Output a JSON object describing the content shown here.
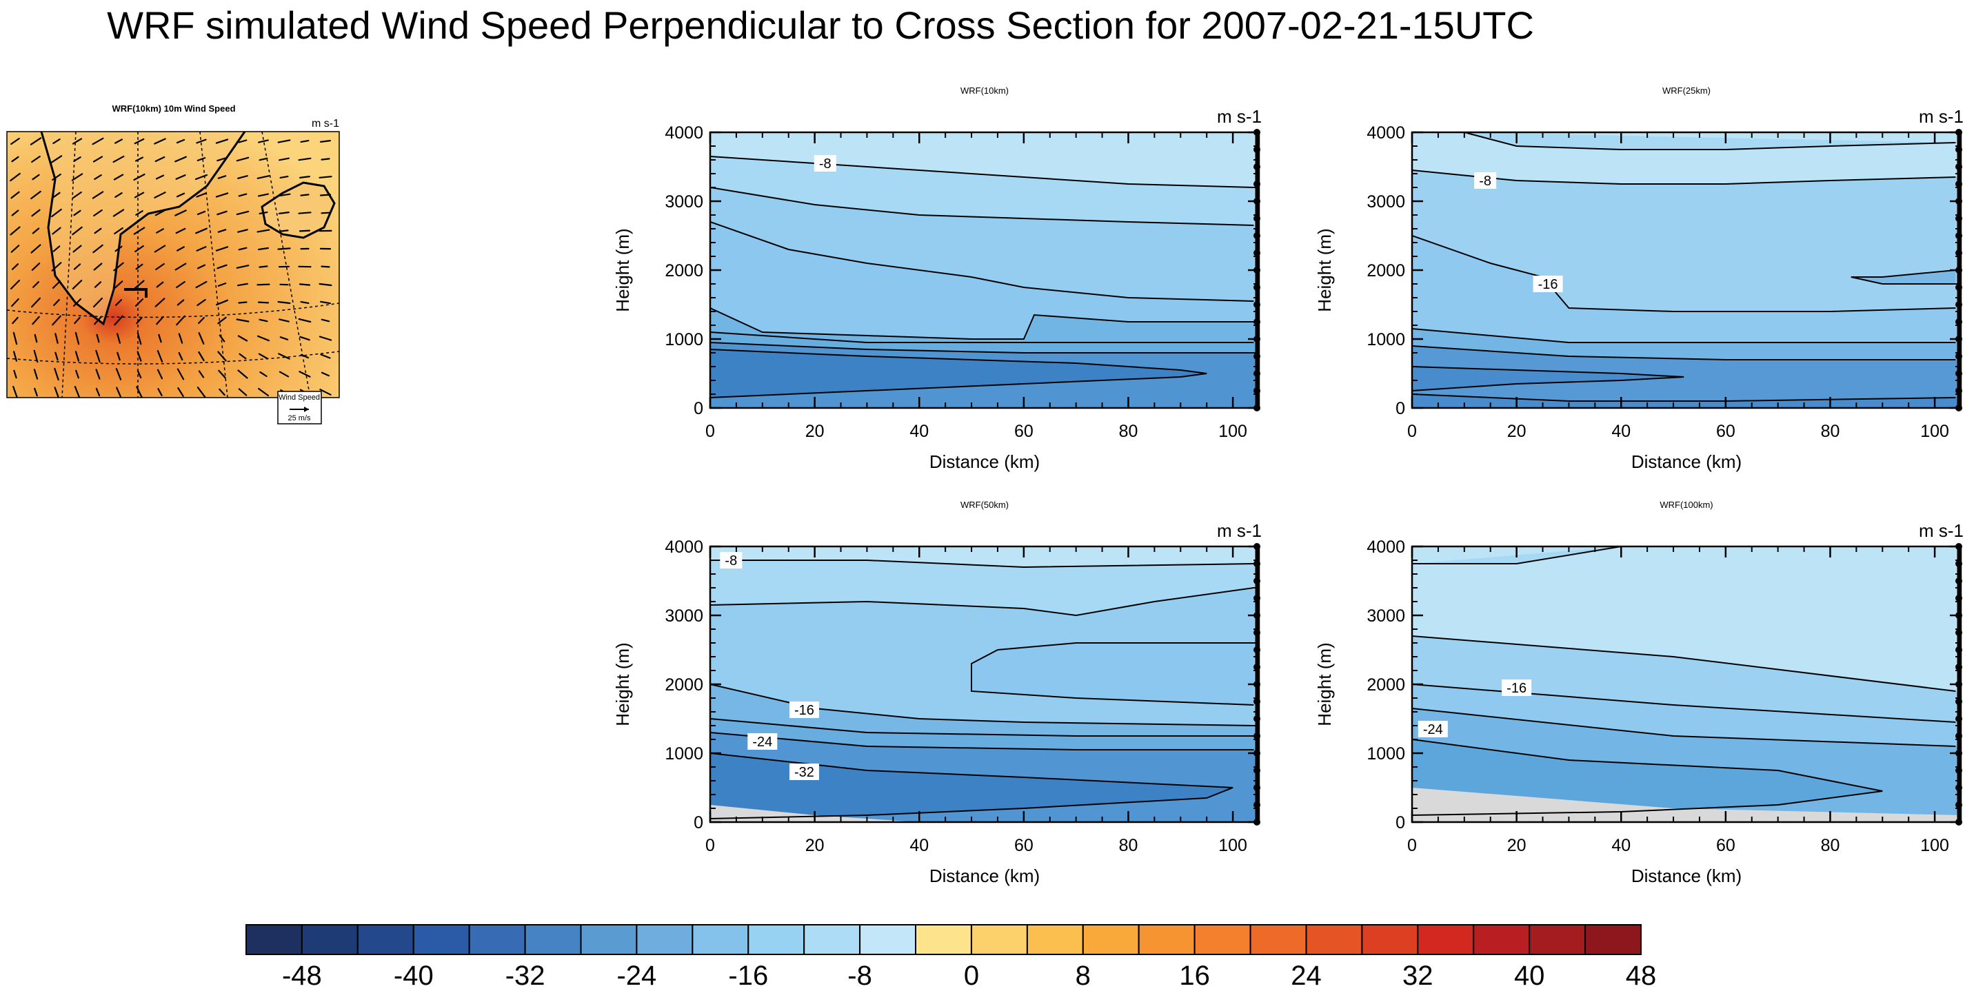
{
  "title": "WRF simulated Wind Speed Perpendicular to Cross Section for 2007-02-21-15UTC",
  "map": {
    "title": "WRF(10km) 10m Wind Speed",
    "units": "m s-1",
    "legend_title": "Wind Speed",
    "legend_value": "25 m/s"
  },
  "colors": {
    "fill_lt": "#bde3f7",
    "fill_m8": "#98d2f3",
    "fill_m16": "#83c3ec",
    "fill_m24": "#5ca6dc",
    "fill_m32": "#3e82c6",
    "terrain": "#d9d9d9"
  },
  "chart_data": [
    {
      "type": "contour",
      "title": "WRF(10km)",
      "units": "m s-1",
      "xlabel": "Distance (km)",
      "ylabel": "Height (m)",
      "xlim": [
        0,
        105
      ],
      "ylim": [
        0,
        4000
      ],
      "xticks": [
        "0",
        "20",
        "40",
        "60",
        "80",
        "100"
      ],
      "yticks": [
        "0",
        "1000",
        "2000",
        "3000",
        "4000"
      ],
      "contour_labels": [
        {
          "text": "-8",
          "x": 22,
          "y": 3550
        }
      ],
      "contours": [
        [
          [
            0,
            3650
          ],
          [
            20,
            3550
          ],
          [
            40,
            3450
          ],
          [
            60,
            3350
          ],
          [
            80,
            3250
          ],
          [
            104,
            3200
          ]
        ],
        [
          [
            0,
            3200
          ],
          [
            20,
            2950
          ],
          [
            40,
            2800
          ],
          [
            60,
            2750
          ],
          [
            80,
            2700
          ],
          [
            104,
            2650
          ]
        ],
        [
          [
            0,
            2700
          ],
          [
            15,
            2300
          ],
          [
            30,
            2100
          ],
          [
            50,
            1900
          ],
          [
            60,
            1750
          ],
          [
            80,
            1600
          ],
          [
            104,
            1550
          ]
        ],
        [
          [
            0,
            1450
          ],
          [
            10,
            1100
          ],
          [
            30,
            1050
          ],
          [
            50,
            1000
          ],
          [
            60,
            1000
          ],
          [
            62,
            1350
          ],
          [
            80,
            1250
          ],
          [
            104,
            1250
          ]
        ],
        [
          [
            0,
            1100
          ],
          [
            30,
            950
          ],
          [
            60,
            950
          ],
          [
            104,
            950
          ]
        ],
        [
          [
            0,
            950
          ],
          [
            30,
            850
          ],
          [
            60,
            800
          ],
          [
            104,
            800
          ]
        ],
        [
          [
            0,
            850
          ],
          [
            30,
            750
          ],
          [
            70,
            650
          ],
          [
            90,
            550
          ],
          [
            95,
            500
          ],
          [
            90,
            450
          ],
          [
            60,
            350
          ],
          [
            30,
            250
          ],
          [
            0,
            150
          ]
        ]
      ]
    },
    {
      "type": "contour",
      "title": "WRF(25km)",
      "units": "m s-1",
      "xlabel": "Distance (km)",
      "ylabel": "Height (m)",
      "xlim": [
        0,
        105
      ],
      "ylim": [
        0,
        4000
      ],
      "xticks": [
        "0",
        "20",
        "40",
        "60",
        "80",
        "100"
      ],
      "yticks": [
        "0",
        "1000",
        "2000",
        "3000",
        "4000"
      ],
      "contour_labels": [
        {
          "text": "-8",
          "x": 14,
          "y": 3300
        },
        {
          "text": "-16",
          "x": 26,
          "y": 1800
        }
      ],
      "contours": [
        [
          [
            10,
            4000
          ],
          [
            20,
            3800
          ],
          [
            40,
            3750
          ],
          [
            60,
            3750
          ],
          [
            80,
            3800
          ],
          [
            104,
            3850
          ]
        ],
        [
          [
            0,
            3450
          ],
          [
            20,
            3300
          ],
          [
            40,
            3250
          ],
          [
            60,
            3250
          ],
          [
            80,
            3300
          ],
          [
            104,
            3350
          ]
        ],
        [
          [
            0,
            2500
          ],
          [
            15,
            2100
          ],
          [
            25,
            1900
          ],
          [
            30,
            1450
          ],
          [
            50,
            1400
          ],
          [
            80,
            1400
          ],
          [
            104,
            1450
          ]
        ],
        [
          [
            104,
            2000
          ],
          [
            90,
            1900
          ],
          [
            84,
            1900
          ],
          [
            90,
            1800
          ],
          [
            104,
            1800
          ]
        ],
        [
          [
            0,
            1150
          ],
          [
            30,
            950
          ],
          [
            60,
            950
          ],
          [
            104,
            950
          ]
        ],
        [
          [
            0,
            900
          ],
          [
            30,
            750
          ],
          [
            60,
            700
          ],
          [
            104,
            700
          ]
        ],
        [
          [
            0,
            600
          ],
          [
            20,
            550
          ],
          [
            40,
            500
          ],
          [
            52,
            450
          ],
          [
            40,
            400
          ],
          [
            20,
            350
          ],
          [
            0,
            250
          ]
        ],
        [
          [
            0,
            200
          ],
          [
            30,
            100
          ],
          [
            60,
            100
          ],
          [
            104,
            150
          ]
        ]
      ]
    },
    {
      "type": "contour",
      "title": "WRF(50km)",
      "units": "m s-1",
      "xlabel": "Distance (km)",
      "ylabel": "Height (m)",
      "xlim": [
        0,
        105
      ],
      "ylim": [
        0,
        4000
      ],
      "xticks": [
        "0",
        "20",
        "40",
        "60",
        "80",
        "100"
      ],
      "yticks": [
        "0",
        "1000",
        "2000",
        "3000",
        "4000"
      ],
      "terrain": [
        [
          0,
          250
        ],
        [
          20,
          100
        ],
        [
          40,
          0
        ]
      ],
      "contour_labels": [
        {
          "text": "-8",
          "x": 4,
          "y": 3800
        },
        {
          "text": "-16",
          "x": 18,
          "y": 1630
        },
        {
          "text": "-24",
          "x": 10,
          "y": 1170
        },
        {
          "text": "-32",
          "x": 18,
          "y": 730
        }
      ],
      "contours": [
        [
          [
            0,
            3800
          ],
          [
            30,
            3800
          ],
          [
            60,
            3700
          ],
          [
            104,
            3750
          ]
        ],
        [
          [
            0,
            3150
          ],
          [
            30,
            3200
          ],
          [
            60,
            3100
          ],
          [
            70,
            3000
          ],
          [
            85,
            3200
          ],
          [
            104,
            3400
          ]
        ],
        [
          [
            104,
            2600
          ],
          [
            70,
            2600
          ],
          [
            55,
            2500
          ],
          [
            50,
            2300
          ],
          [
            50,
            1900
          ],
          [
            70,
            1800
          ],
          [
            104,
            1700
          ]
        ],
        [
          [
            0,
            2000
          ],
          [
            20,
            1650
          ],
          [
            40,
            1500
          ],
          [
            60,
            1450
          ],
          [
            104,
            1400
          ]
        ],
        [
          [
            0,
            1500
          ],
          [
            30,
            1300
          ],
          [
            70,
            1250
          ],
          [
            104,
            1250
          ]
        ],
        [
          [
            0,
            1300
          ],
          [
            30,
            1100
          ],
          [
            70,
            1050
          ],
          [
            104,
            1050
          ]
        ],
        [
          [
            0,
            1000
          ],
          [
            30,
            750
          ],
          [
            60,
            650
          ],
          [
            100,
            500
          ],
          [
            95,
            350
          ],
          [
            60,
            200
          ],
          [
            30,
            100
          ],
          [
            0,
            50
          ]
        ]
      ]
    },
    {
      "type": "contour",
      "title": "WRF(100km)",
      "units": "m s-1",
      "xlabel": "Distance (km)",
      "ylabel": "Height (m)",
      "xlim": [
        0,
        105
      ],
      "ylim": [
        0,
        4000
      ],
      "xticks": [
        "0",
        "20",
        "40",
        "60",
        "80",
        "100"
      ],
      "yticks": [
        "0",
        "1000",
        "2000",
        "3000",
        "4000"
      ],
      "terrain": [
        [
          0,
          500
        ],
        [
          50,
          200
        ],
        [
          105,
          100
        ]
      ],
      "contour_labels": [
        {
          "text": "-16",
          "x": 20,
          "y": 1950
        },
        {
          "text": "-24",
          "x": 4,
          "y": 1350
        }
      ],
      "contours": [
        [
          [
            0,
            3750
          ],
          [
            20,
            3750
          ],
          [
            40,
            4000
          ]
        ],
        [
          [
            0,
            2700
          ],
          [
            50,
            2400
          ],
          [
            104,
            1900
          ]
        ],
        [
          [
            0,
            2000
          ],
          [
            50,
            1700
          ],
          [
            104,
            1450
          ]
        ],
        [
          [
            0,
            1650
          ],
          [
            50,
            1250
          ],
          [
            104,
            1100
          ]
        ],
        [
          [
            0,
            1200
          ],
          [
            30,
            900
          ],
          [
            70,
            750
          ],
          [
            90,
            450
          ],
          [
            70,
            250
          ],
          [
            40,
            150
          ],
          [
            0,
            100
          ]
        ]
      ]
    }
  ],
  "colorbar": {
    "labels": [
      "-48",
      "-40",
      "-32",
      "-24",
      "-16",
      "-8",
      "0",
      "8",
      "16",
      "24",
      "32",
      "40",
      "48"
    ],
    "colors": [
      "#1d305f",
      "#1e3b76",
      "#24488c",
      "#2b5ba6",
      "#376cb5",
      "#4583c4",
      "#5a9bd2",
      "#6eadde",
      "#84c1eb",
      "#98d2f3",
      "#acdcf6",
      "#c3e6f8",
      "#fde38c",
      "#fcd06a",
      "#fbbf50",
      "#f9a83a",
      "#f79432",
      "#f47f2c",
      "#ee6a28",
      "#e55424",
      "#dd3f22",
      "#d2281f",
      "#b91e22",
      "#a41b20",
      "#8d171c"
    ]
  }
}
